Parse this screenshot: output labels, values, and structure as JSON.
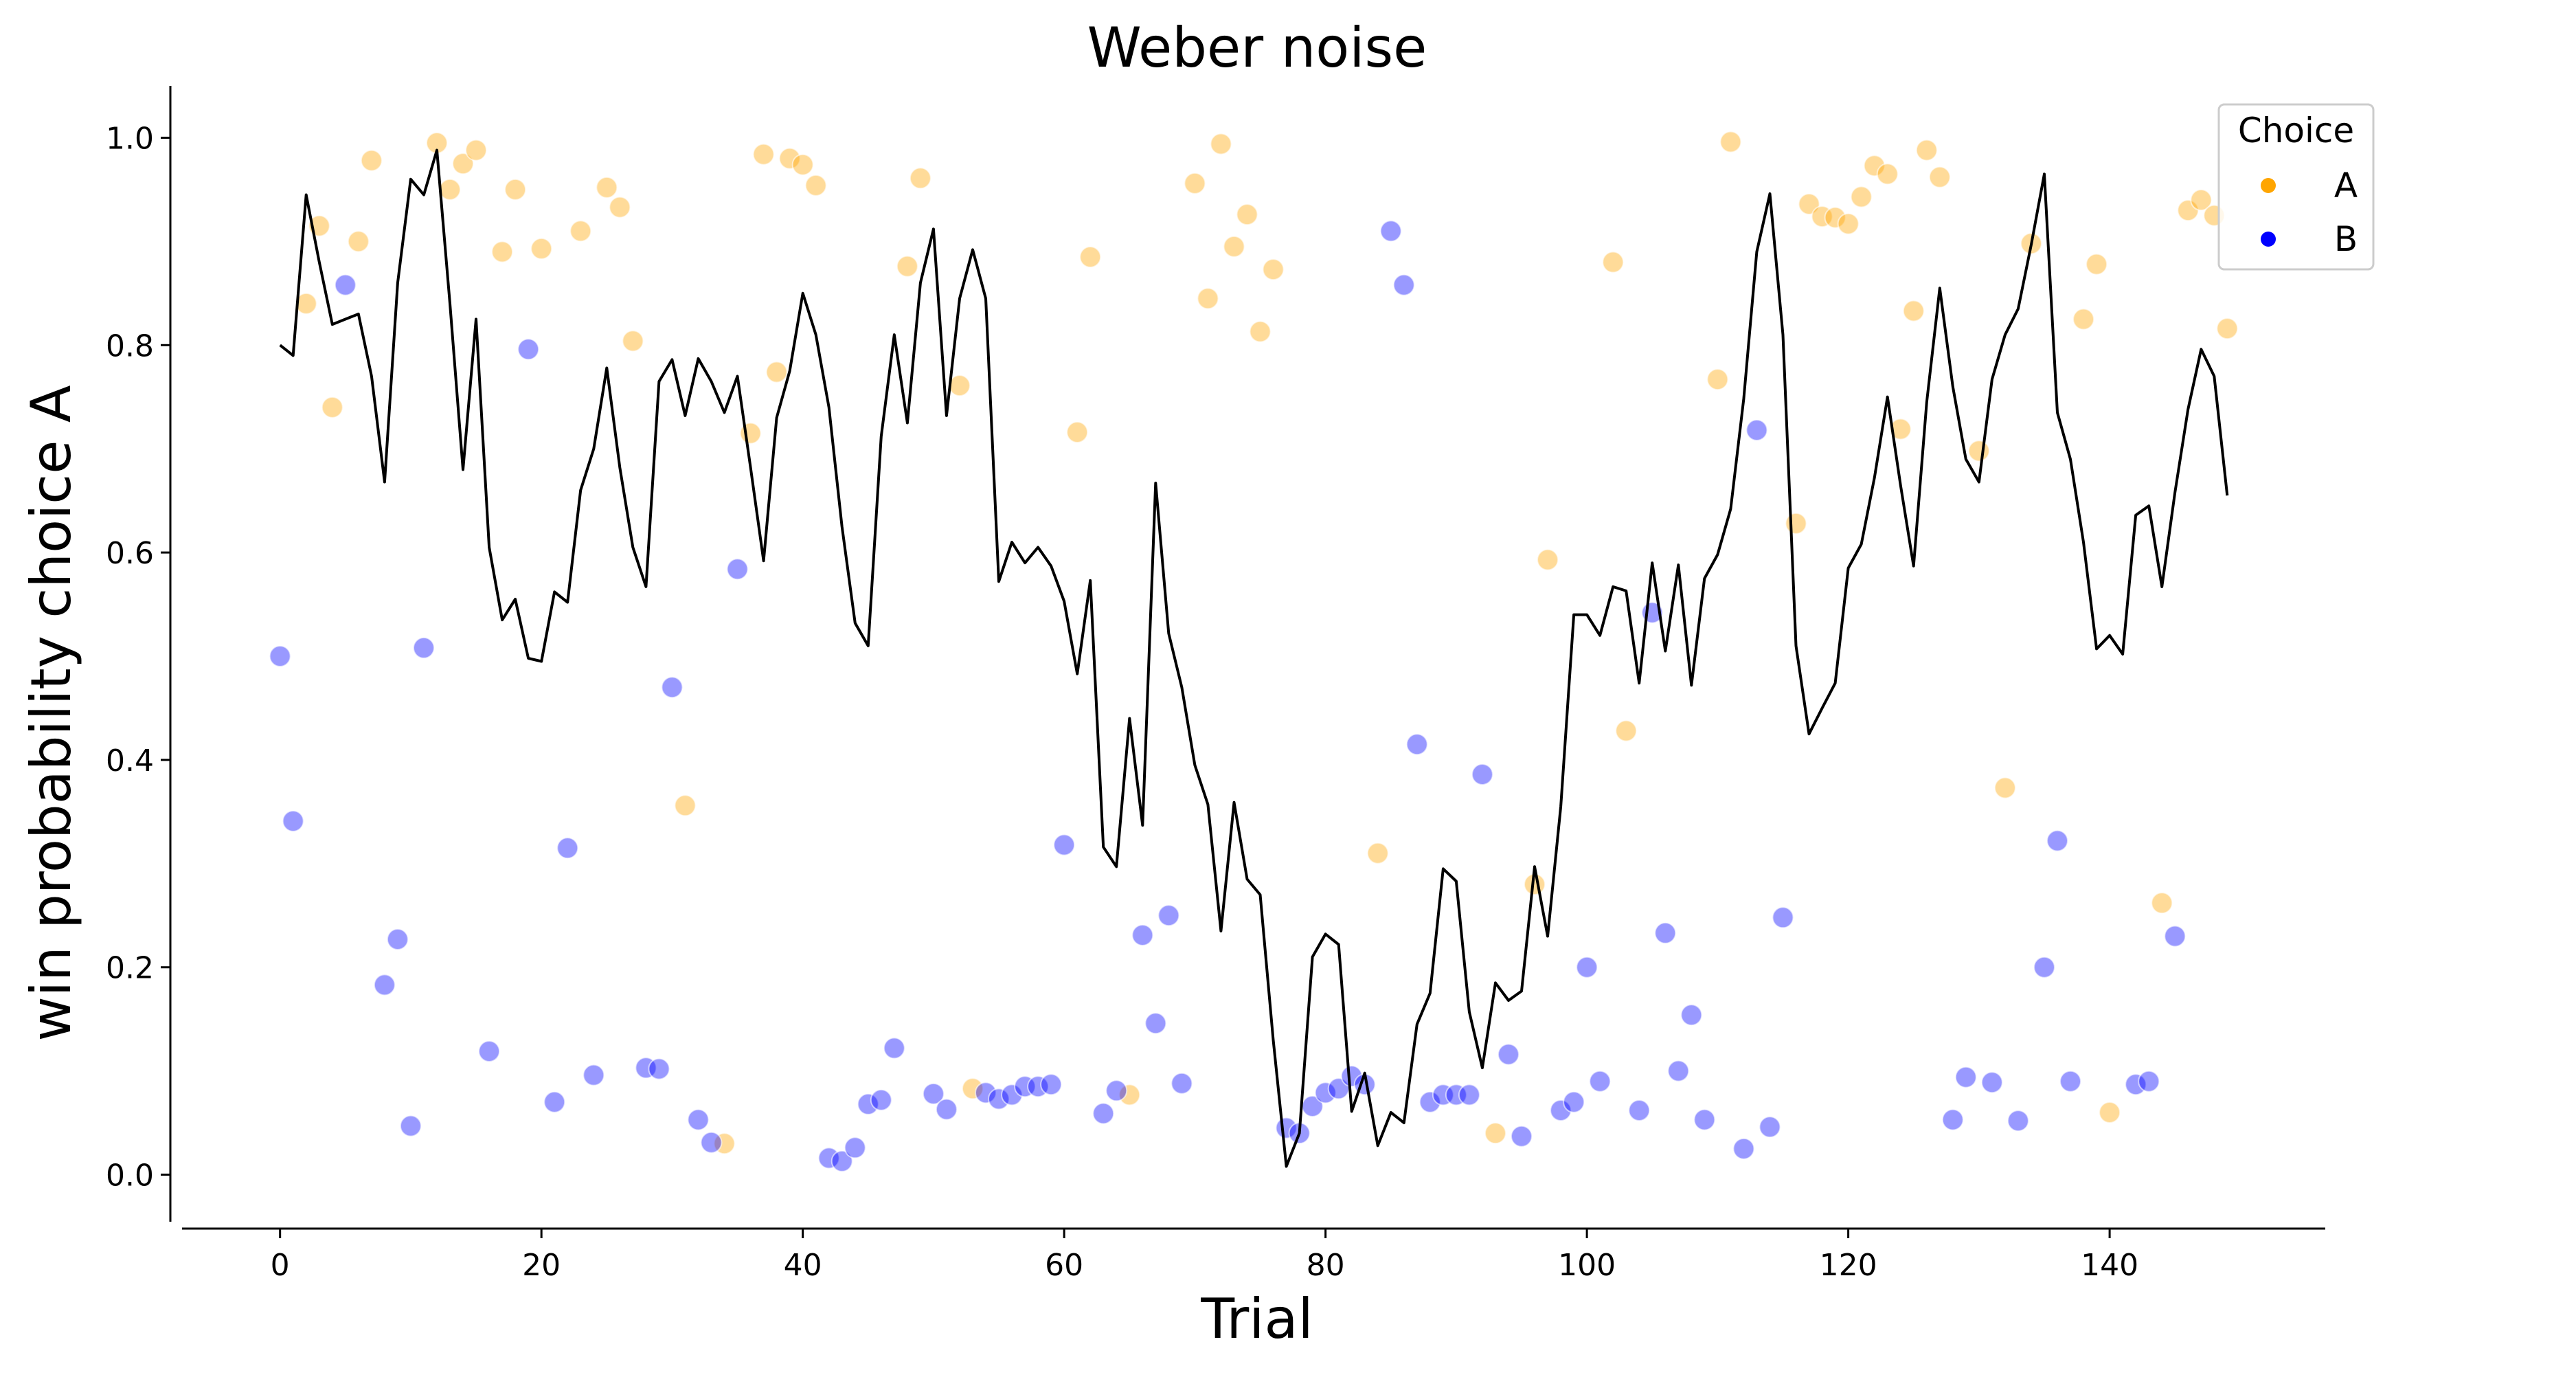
{
  "chart_data": {
    "type": "scatter",
    "title": "Weber noise",
    "xlabel": "Trial",
    "ylabel": "win probability choice A",
    "xlim": [
      -7.5,
      156.5
    ],
    "ylim": [
      -0.05,
      1.05
    ],
    "xticks": [
      0,
      20,
      40,
      60,
      80,
      100,
      120,
      140
    ],
    "yticks": [
      0.0,
      0.2,
      0.4,
      0.6,
      0.8,
      1.0
    ],
    "grid": false,
    "legend": {
      "title": "Choice",
      "placement": "top-right",
      "entries": [
        {
          "label": "A",
          "color": "#ffa500"
        },
        {
          "label": "B",
          "color": "#0000ff"
        }
      ]
    },
    "colors": {
      "A": "#ffa500",
      "B": "#0000ff",
      "line": "#000000"
    },
    "point_alpha": 0.4,
    "line_series": {
      "x": [
        0,
        1,
        2,
        3,
        4,
        5,
        6,
        7,
        8,
        9,
        10,
        11,
        12,
        13,
        14,
        15,
        16,
        17,
        18,
        19,
        20,
        21,
        22,
        23,
        24,
        25,
        26,
        27,
        28,
        29,
        30,
        31,
        32,
        33,
        34,
        35,
        36,
        37,
        38,
        39,
        40,
        41,
        42,
        43,
        44,
        45,
        46,
        47,
        48,
        49,
        50,
        51,
        52,
        53,
        54,
        55,
        56,
        57,
        58,
        59,
        60,
        61,
        62,
        63,
        64,
        65,
        66,
        67,
        68,
        69,
        70,
        71,
        72,
        73,
        74,
        75,
        76,
        77,
        78,
        79,
        80,
        81,
        82,
        83,
        84,
        85,
        86,
        87,
        88,
        89,
        90,
        91,
        92,
        93,
        94,
        95,
        96,
        97,
        98,
        99,
        100,
        101,
        102,
        103,
        104,
        105,
        106,
        107,
        108,
        109,
        110,
        111,
        112,
        113,
        114,
        115,
        116,
        117,
        118,
        119,
        120,
        121,
        122,
        123,
        124,
        125,
        126,
        127,
        128,
        129,
        130,
        131,
        132,
        133,
        134,
        135,
        136,
        137,
        138,
        139,
        140,
        141,
        142,
        143,
        144,
        145,
        146,
        147,
        148,
        149
      ],
      "y": [
        0.8,
        0.79,
        0.945,
        0.88,
        0.82,
        0.825,
        0.83,
        0.77,
        0.668,
        0.86,
        0.96,
        0.945,
        0.988,
        0.84,
        0.68,
        0.825,
        0.605,
        0.535,
        0.555,
        0.498,
        0.495,
        0.562,
        0.552,
        0.66,
        0.7,
        0.778,
        0.682,
        0.605,
        0.567,
        0.765,
        0.786,
        0.732,
        0.787,
        0.765,
        0.735,
        0.77,
        0.682,
        0.592,
        0.73,
        0.775,
        0.85,
        0.81,
        0.74,
        0.625,
        0.532,
        0.51,
        0.712,
        0.81,
        0.725,
        0.86,
        0.912,
        0.732,
        0.845,
        0.892,
        0.845,
        0.572,
        0.61,
        0.59,
        0.605,
        0.587,
        0.553,
        0.483,
        0.573,
        0.316,
        0.297,
        0.44,
        0.337,
        0.667,
        0.522,
        0.47,
        0.395,
        0.357,
        0.235,
        0.359,
        0.285,
        0.27,
        0.13,
        0.008,
        0.04,
        0.21,
        0.232,
        0.222,
        0.061,
        0.098,
        0.028,
        0.06,
        0.05,
        0.145,
        0.175,
        0.295,
        0.283,
        0.157,
        0.103,
        0.185,
        0.168,
        0.177,
        0.297,
        0.23,
        0.355,
        0.54,
        0.54,
        0.52,
        0.567,
        0.563,
        0.474,
        0.59,
        0.505,
        0.588,
        0.472,
        0.575,
        0.598,
        0.642,
        0.748,
        0.89,
        0.946,
        0.81,
        0.51,
        0.425,
        0.45,
        0.474,
        0.585,
        0.608,
        0.672,
        0.75,
        0.665,
        0.587,
        0.745,
        0.855,
        0.76,
        0.69,
        0.668,
        0.767,
        0.81,
        0.835,
        0.897,
        0.965,
        0.735,
        0.69,
        0.61,
        0.507,
        0.52,
        0.502,
        0.636,
        0.645,
        0.567,
        0.658,
        0.738,
        0.796,
        0.77,
        0.655
      ]
    },
    "series": [
      {
        "name": "A",
        "x": [
          2,
          3,
          4,
          6,
          7,
          12,
          13,
          14,
          15,
          17,
          18,
          20,
          23,
          25,
          26,
          27,
          31,
          34,
          36,
          37,
          38,
          39,
          40,
          41,
          48,
          49,
          52,
          53,
          61,
          62,
          65,
          70,
          71,
          72,
          73,
          74,
          75,
          76,
          84,
          93,
          96,
          97,
          102,
          103,
          110,
          111,
          116,
          117,
          118,
          119,
          120,
          121,
          122,
          123,
          124,
          125,
          126,
          127,
          130,
          132,
          134,
          138,
          139,
          140,
          144,
          146,
          147,
          148,
          149
        ],
        "y": [
          0.84,
          0.915,
          0.74,
          0.9,
          0.978,
          0.995,
          0.95,
          0.975,
          0.988,
          0.89,
          0.95,
          0.893,
          0.91,
          0.952,
          0.933,
          0.804,
          0.356,
          0.03,
          0.715,
          0.984,
          0.774,
          0.98,
          0.974,
          0.954,
          0.876,
          0.961,
          0.761,
          0.083,
          0.716,
          0.885,
          0.077,
          0.956,
          0.845,
          0.994,
          0.895,
          0.926,
          0.813,
          0.873,
          0.31,
          0.04,
          0.28,
          0.593,
          0.88,
          0.428,
          0.767,
          0.996,
          0.628,
          0.936,
          0.924,
          0.923,
          0.917,
          0.943,
          0.973,
          0.965,
          0.719,
          0.833,
          0.988,
          0.962,
          0.698,
          0.373,
          0.898,
          0.825,
          0.878,
          0.06,
          0.262,
          0.93,
          0.94,
          0.925,
          0.816
        ]
      },
      {
        "name": "B",
        "x": [
          0,
          1,
          5,
          8,
          9,
          10,
          11,
          16,
          19,
          21,
          22,
          24,
          28,
          29,
          30,
          32,
          33,
          35,
          42,
          43,
          44,
          45,
          46,
          47,
          50,
          51,
          54,
          55,
          56,
          57,
          58,
          59,
          60,
          63,
          64,
          66,
          67,
          68,
          69,
          77,
          78,
          79,
          80,
          81,
          82,
          83,
          85,
          86,
          87,
          88,
          89,
          90,
          91,
          92,
          94,
          95,
          98,
          99,
          100,
          101,
          104,
          105,
          106,
          107,
          108,
          109,
          112,
          113,
          114,
          115,
          128,
          129,
          131,
          133,
          135,
          136,
          137,
          142,
          143,
          145
        ],
        "y": [
          0.5,
          0.341,
          0.858,
          0.183,
          0.227,
          0.047,
          0.508,
          0.119,
          0.796,
          0.07,
          0.315,
          0.096,
          0.103,
          0.102,
          0.47,
          0.053,
          0.031,
          0.584,
          0.016,
          0.013,
          0.026,
          0.068,
          0.072,
          0.122,
          0.078,
          0.063,
          0.079,
          0.073,
          0.077,
          0.085,
          0.085,
          0.087,
          0.318,
          0.059,
          0.081,
          0.231,
          0.146,
          0.25,
          0.088,
          0.045,
          0.04,
          0.066,
          0.079,
          0.083,
          0.095,
          0.087,
          0.91,
          0.858,
          0.415,
          0.07,
          0.077,
          0.077,
          0.077,
          0.386,
          0.116,
          0.037,
          0.062,
          0.07,
          0.2,
          0.09,
          0.062,
          0.542,
          0.233,
          0.1,
          0.154,
          0.053,
          0.025,
          0.718,
          0.046,
          0.248,
          0.053,
          0.094,
          0.089,
          0.052,
          0.2,
          0.322,
          0.09,
          0.087,
          0.09,
          0.23
        ]
      }
    ]
  }
}
